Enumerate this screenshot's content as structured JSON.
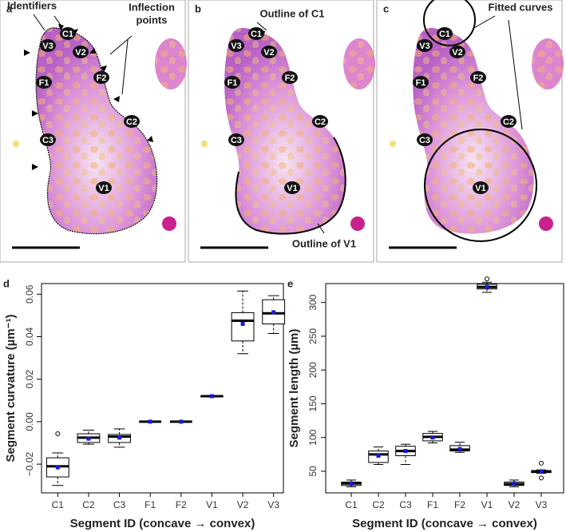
{
  "panels": [
    {
      "letter": "a",
      "annotations": [
        "Identifiers",
        "Inflection",
        "points"
      ],
      "segment_labels": [
        "C1",
        "V3",
        "V2",
        "F1",
        "F2",
        "C2",
        "C3",
        "V1"
      ]
    },
    {
      "letter": "b",
      "annotations": [
        "Outline of C1",
        "Outline of V1"
      ],
      "segment_labels": [
        "C1",
        "V3",
        "V2",
        "F1",
        "F2",
        "C2",
        "C3",
        "V1"
      ]
    },
    {
      "letter": "c",
      "annotations": [
        "Fitted curves"
      ],
      "segment_labels": [
        "C1",
        "V3",
        "V2",
        "F1",
        "F2",
        "C2",
        "C3",
        "V1"
      ]
    }
  ],
  "chart_data": [
    {
      "type": "box",
      "letter": "d",
      "x_label": "Segment ID (concave → convex)",
      "y_label": "Segment curvature (µm⁻¹)",
      "categories": [
        "C1",
        "C2",
        "C3",
        "F1",
        "F2",
        "V1",
        "V2",
        "V3"
      ],
      "ylim": [
        -0.0335,
        0.065
      ],
      "yticks": [
        {
          "value": -0.02,
          "label": "−0.02"
        },
        {
          "value": 0,
          "label": "0.00"
        },
        {
          "value": 0.02,
          "label": "0.02"
        },
        {
          "value": 0.04,
          "label": "0.04"
        },
        {
          "value": 0.06,
          "label": "0.06"
        }
      ],
      "mean_color": "#1a1ad6",
      "boxes": [
        {
          "min": -0.03,
          "q1": -0.026,
          "median": -0.021,
          "q3": -0.017,
          "max": -0.0147,
          "mean": -0.0215,
          "outliers": [
            -0.0057
          ]
        },
        {
          "min": -0.0106,
          "q1": -0.0098,
          "median": -0.0075,
          "q3": -0.0057,
          "max": -0.004,
          "mean": -0.008,
          "outliers": []
        },
        {
          "min": -0.012,
          "q1": -0.0098,
          "median": -0.007,
          "q3": -0.006,
          "max": -0.0034,
          "mean": -0.0075,
          "outliers": []
        },
        {
          "min": 0,
          "q1": 0,
          "median": 0,
          "q3": 0,
          "max": 0,
          "mean": 0,
          "outliers": []
        },
        {
          "min": 0,
          "q1": 0,
          "median": 0,
          "q3": 0,
          "max": 0,
          "mean": 0,
          "outliers": []
        },
        {
          "min": 0.0118,
          "q1": 0.0119,
          "median": 0.012,
          "q3": 0.0121,
          "max": 0.0122,
          "mean": 0.012,
          "outliers": []
        },
        {
          "min": 0.032,
          "q1": 0.038,
          "median": 0.0475,
          "q3": 0.0513,
          "max": 0.0615,
          "mean": 0.046,
          "outliers": []
        },
        {
          "min": 0.0415,
          "q1": 0.046,
          "median": 0.051,
          "q3": 0.0574,
          "max": 0.0593,
          "mean": 0.0515,
          "outliers": []
        }
      ]
    },
    {
      "type": "box",
      "letter": "e",
      "x_label": "Segment ID (concave → convex)",
      "y_label": "Segment length (µm)",
      "categories": [
        "C1",
        "C2",
        "C3",
        "F1",
        "F2",
        "V1",
        "V2",
        "V3"
      ],
      "ylim": [
        18,
        328
      ],
      "yticks": [
        50,
        100,
        150,
        200,
        250,
        300
      ],
      "mean_color": "#1a1ad6",
      "boxes": [
        {
          "min": 27,
          "q1": 29,
          "median": 32,
          "q3": 34,
          "max": 37,
          "mean": 32,
          "outliers": []
        },
        {
          "min": 60,
          "q1": 63,
          "median": 75,
          "q3": 80,
          "max": 86,
          "mean": 73,
          "outliers": []
        },
        {
          "min": 60,
          "q1": 73,
          "median": 80,
          "q3": 87,
          "max": 90,
          "mean": 80,
          "outliers": []
        },
        {
          "min": 92,
          "q1": 95,
          "median": 101,
          "q3": 106,
          "max": 109,
          "mean": 100,
          "outliers": []
        },
        {
          "min": 78,
          "q1": 80,
          "median": 82,
          "q3": 88,
          "max": 93,
          "mean": 83,
          "outliers": []
        },
        {
          "min": 315,
          "q1": 320,
          "median": 323,
          "q3": 327,
          "max": 330,
          "mean": 323,
          "outliers": [
            335
          ]
        },
        {
          "min": 27,
          "q1": 29,
          "median": 31,
          "q3": 34,
          "max": 37,
          "mean": 32,
          "outliers": []
        },
        {
          "min": 47,
          "q1": 48,
          "median": 50,
          "q3": 51,
          "max": 52,
          "mean": 50,
          "outliers": [
            40,
            62
          ]
        }
      ]
    }
  ]
}
